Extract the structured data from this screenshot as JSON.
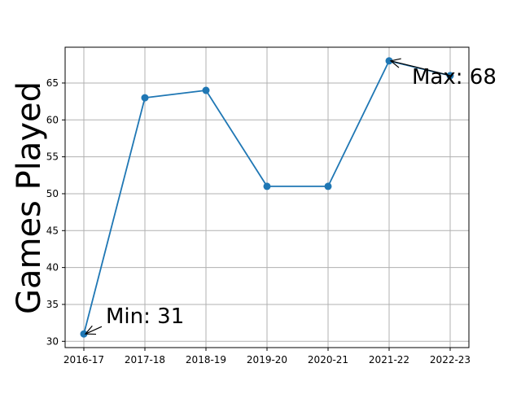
{
  "chart_data": {
    "type": "line",
    "title": "",
    "xlabel": "",
    "ylabel": "Games Played",
    "categories": [
      "2016-17",
      "2017-18",
      "2018-19",
      "2019-20",
      "2020-21",
      "2021-22",
      "2022-23"
    ],
    "series": [
      {
        "values": [
          31,
          63,
          64,
          51,
          51,
          68,
          66
        ],
        "color": "#1f77b4"
      }
    ],
    "ylim": [
      29.15,
      69.85
    ],
    "yticks": [
      30,
      35,
      40,
      45,
      50,
      55,
      60,
      65
    ],
    "grid": true,
    "annotations": [
      {
        "text": "Min: 31",
        "category": "2016-17",
        "value": 31
      },
      {
        "text": "Max: 68",
        "category": "2021-22",
        "value": 68
      }
    ]
  }
}
